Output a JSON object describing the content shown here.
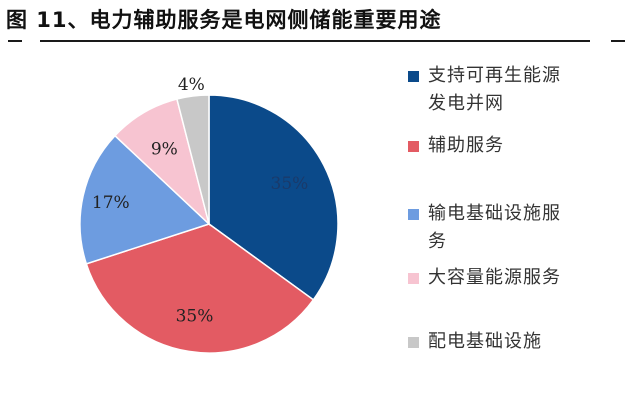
{
  "title": "图 11、电力辅助服务是电网侧储能重要用途",
  "chart_data": {
    "type": "pie",
    "title": "图 11、电力辅助服务是电网侧储能重要用途",
    "slices": [
      {
        "name": "支持可再生能源发电并网",
        "value": 35,
        "label": "35%",
        "color": "#0b4a8a",
        "label_color": "#1a3a6a"
      },
      {
        "name": "辅助服务",
        "value": 35,
        "label": "35%",
        "color": "#e35b63",
        "label_color": "#222222"
      },
      {
        "name": "输电基础设施服务",
        "value": 17,
        "label": "17%",
        "color": "#6d9ce0",
        "label_color": "#222222"
      },
      {
        "name": "大容量能源服务",
        "value": 9,
        "label": "9%",
        "color": "#f7c4d1",
        "label_color": "#222222"
      },
      {
        "name": "配电基础设施",
        "value": 4,
        "label": "4%",
        "color": "#c8c8c8",
        "label_color": "#222222"
      }
    ],
    "legend_position": "right"
  },
  "legend": [
    {
      "lines": [
        "支持可再生能源",
        "发电并网"
      ],
      "color": "#0b4a8a"
    },
    {
      "lines": [
        "辅助服务"
      ],
      "color": "#e35b63"
    },
    {
      "lines": [
        "输电基础设施服",
        "务"
      ],
      "color": "#6d9ce0"
    },
    {
      "lines": [
        "大容量能源服务"
      ],
      "color": "#f7c4d1"
    },
    {
      "lines": [
        "配电基础设施"
      ],
      "color": "#c8c8c8"
    }
  ]
}
